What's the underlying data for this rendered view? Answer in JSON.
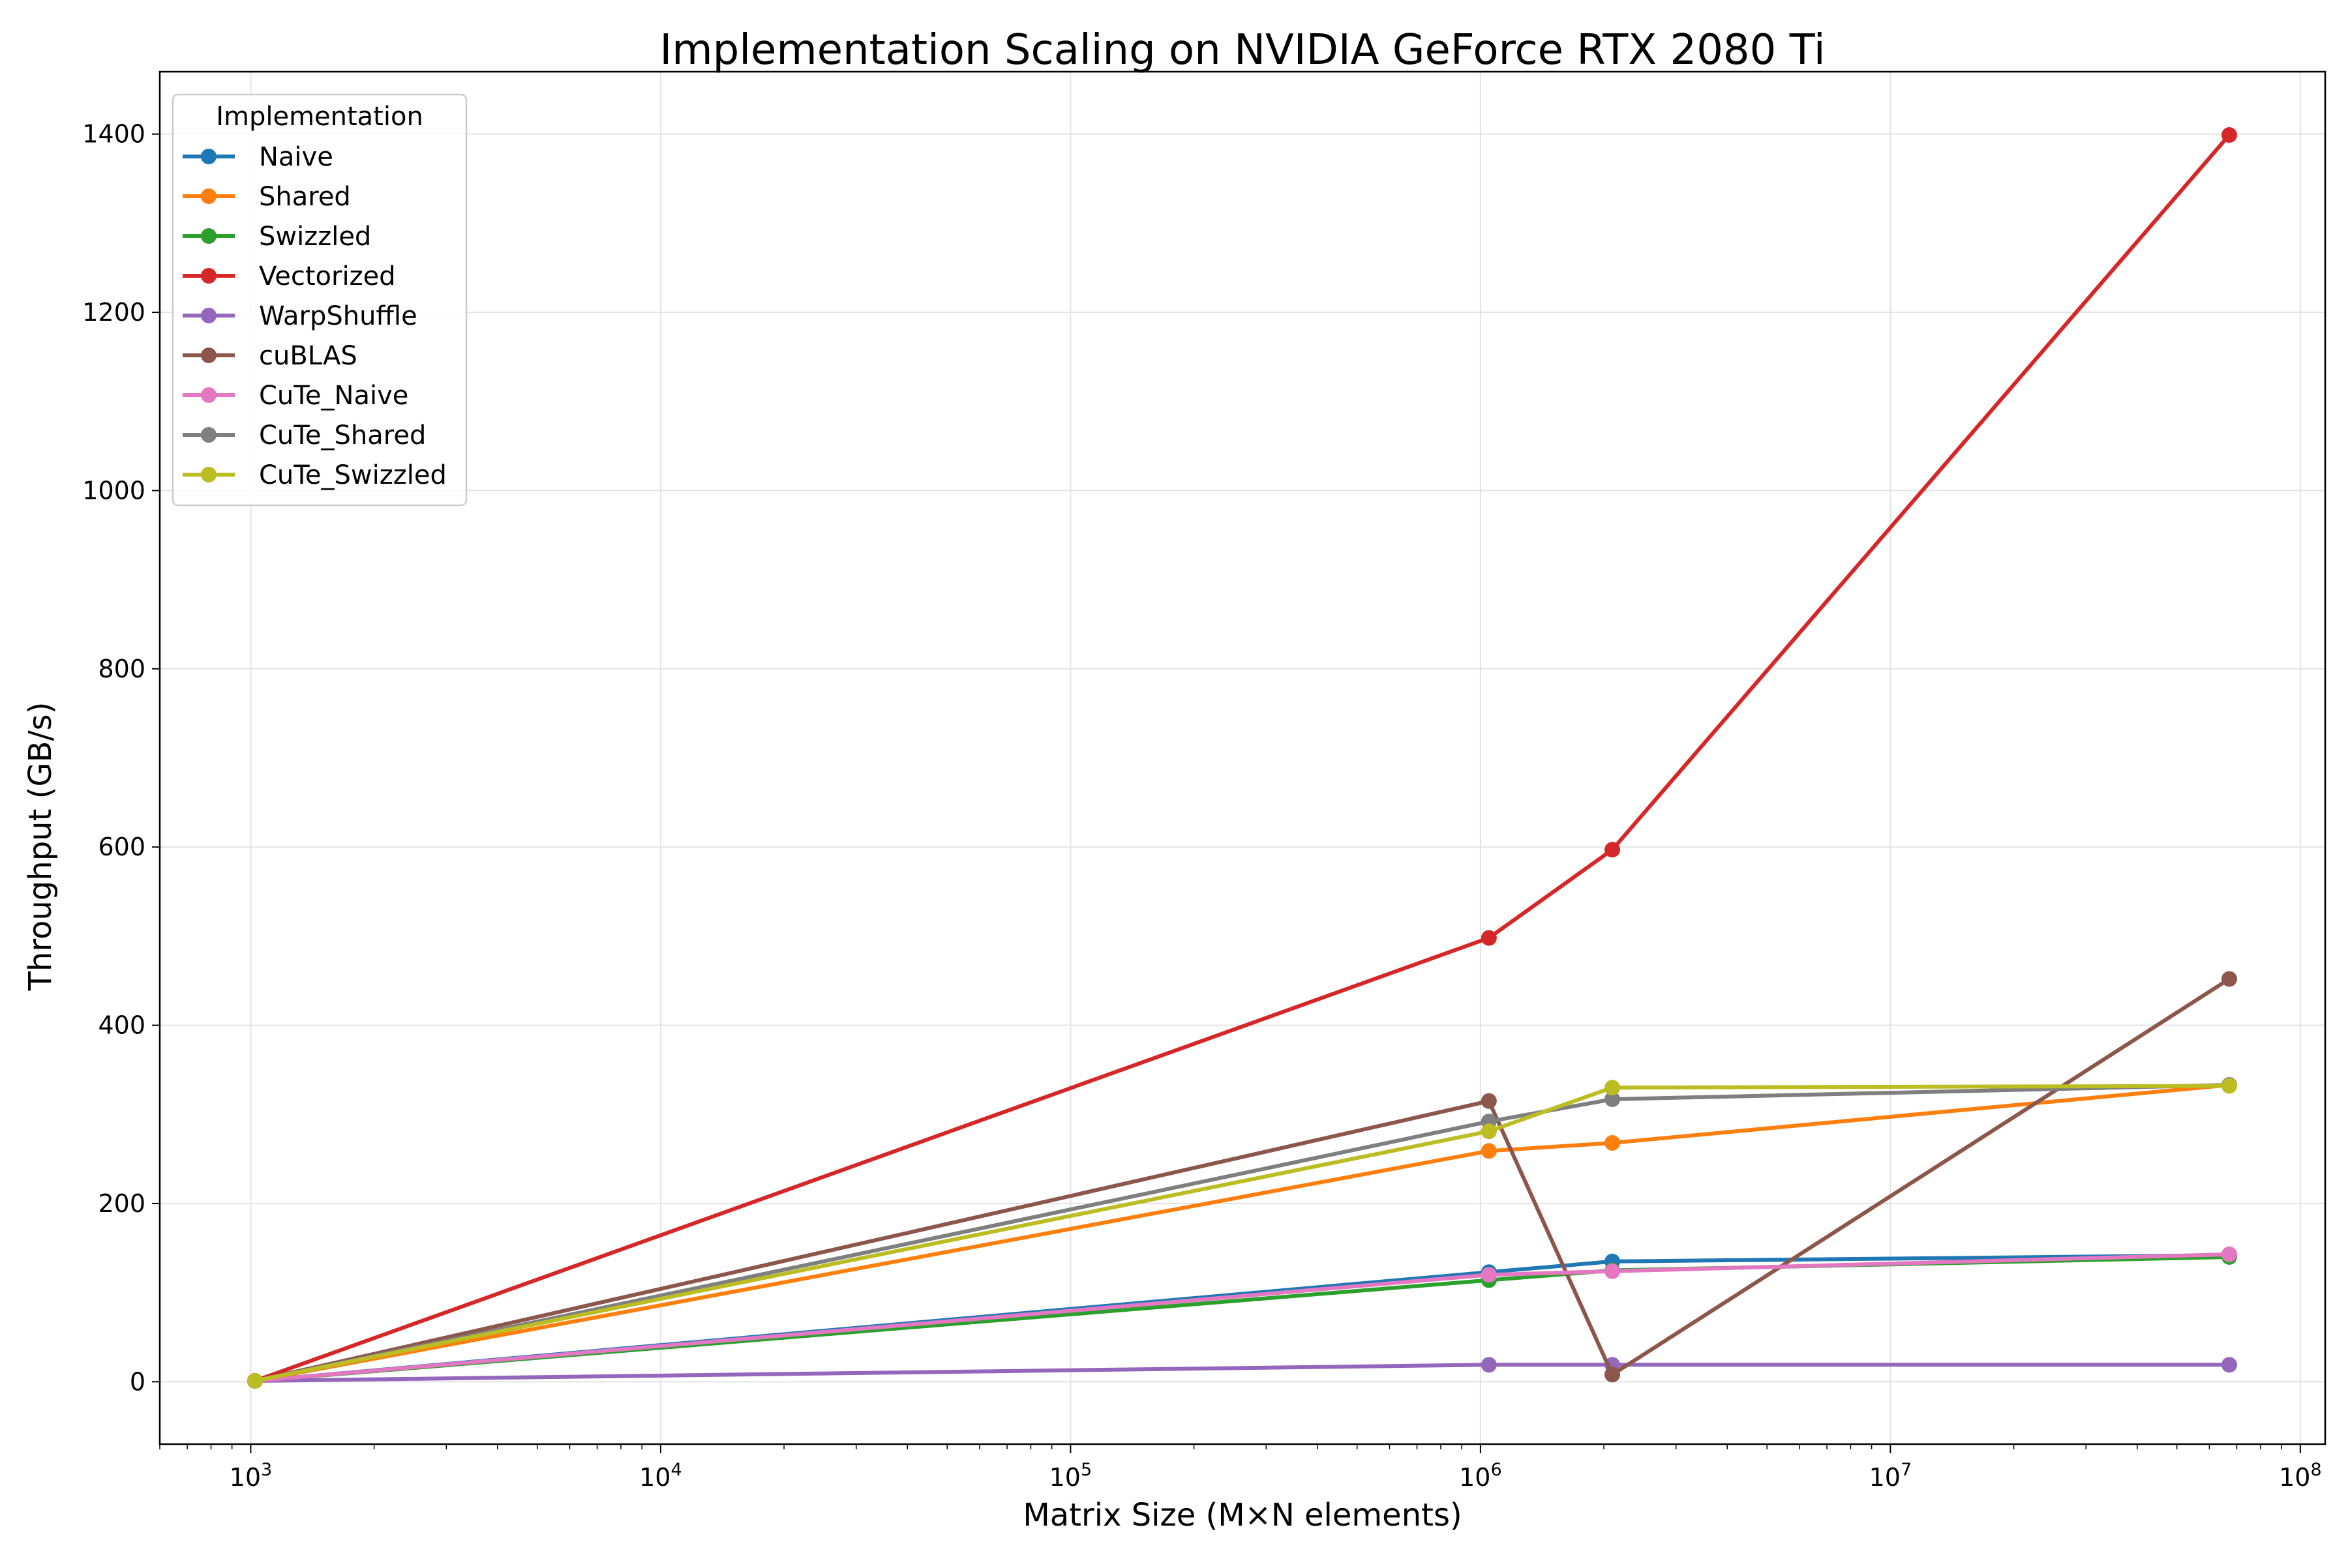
{
  "chart_data": {
    "type": "line",
    "title": "Implementation Scaling on NVIDIA GeForce RTX 2080 Ti",
    "xlabel": "Matrix Size (M×N elements)",
    "ylabel": "Throughput (GB/s)",
    "x_scale": "log",
    "xlim": [
      600,
      115000000
    ],
    "ylim": [
      -70,
      1470
    ],
    "x_ticks": [
      {
        "value": 1000,
        "base": "10",
        "exp": "3"
      },
      {
        "value": 10000,
        "base": "10",
        "exp": "4"
      },
      {
        "value": 100000,
        "base": "10",
        "exp": "5"
      },
      {
        "value": 1000000,
        "base": "10",
        "exp": "6"
      },
      {
        "value": 10000000,
        "base": "10",
        "exp": "7"
      },
      {
        "value": 100000000,
        "base": "10",
        "exp": "8"
      }
    ],
    "y_ticks": [
      {
        "value": 0,
        "label": "0"
      },
      {
        "value": 200,
        "label": "200"
      },
      {
        "value": 400,
        "label": "400"
      },
      {
        "value": 600,
        "label": "600"
      },
      {
        "value": 800,
        "label": "800"
      },
      {
        "value": 1000,
        "label": "1000"
      },
      {
        "value": 1200,
        "label": "1200"
      },
      {
        "value": 1400,
        "label": "1400"
      }
    ],
    "grid": true,
    "legend": {
      "title": "Implementation",
      "placement": "top-left"
    },
    "x": [
      1024,
      1048576,
      2097152,
      67108864
    ],
    "series": [
      {
        "name": "Naive",
        "color": "#1f77b4",
        "values": [
          1,
          123,
          135,
          142
        ]
      },
      {
        "name": "Shared",
        "color": "#ff7f0e",
        "values": [
          1,
          259,
          268,
          333
        ]
      },
      {
        "name": "Swizzled",
        "color": "#2ca02c",
        "values": [
          1,
          114,
          125,
          140
        ]
      },
      {
        "name": "Vectorized",
        "color": "#d62728",
        "values": [
          1,
          498,
          597,
          1399
        ]
      },
      {
        "name": "WarpShuffle",
        "color": "#9467bd",
        "values": [
          1,
          19,
          19,
          19
        ]
      },
      {
        "name": "cuBLAS",
        "color": "#8c564b",
        "values": [
          1,
          315,
          8,
          452
        ]
      },
      {
        "name": "CuTe_Naive",
        "color": "#e377c2",
        "values": [
          1,
          120,
          124,
          143
        ]
      },
      {
        "name": "CuTe_Shared",
        "color": "#7f7f7f",
        "values": [
          1,
          292,
          317,
          333
        ]
      },
      {
        "name": "CuTe_Swizzled",
        "color": "#bcbd22",
        "values": [
          1,
          281,
          330,
          332
        ]
      }
    ]
  }
}
